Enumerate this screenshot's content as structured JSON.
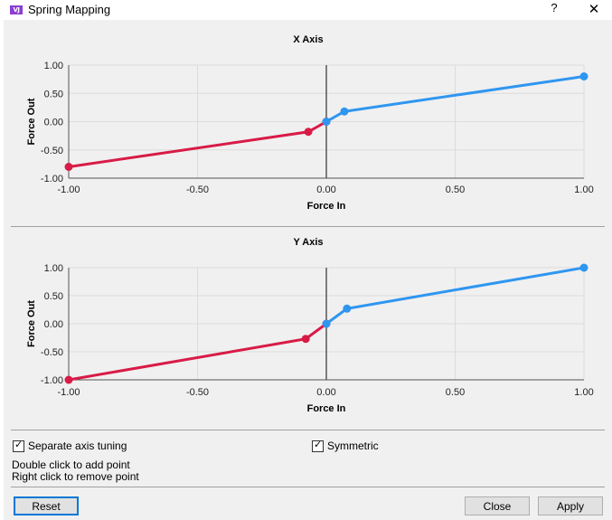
{
  "window": {
    "title": "Spring Mapping",
    "app_icon_text": "VJ",
    "help_label": "?",
    "close_label": "✕"
  },
  "chart_data": [
    {
      "type": "line",
      "title": "X Axis",
      "xlabel": "Force In",
      "ylabel": "Force Out",
      "xlim": [
        -1,
        1
      ],
      "ylim": [
        -1,
        1
      ],
      "xticks": [
        "-1.00",
        "-0.50",
        "0.00",
        "0.50",
        "1.00"
      ],
      "yticks": [
        "1.00",
        "0.50",
        "0.00",
        "-0.50",
        "-1.00"
      ],
      "grid": true,
      "series": [
        {
          "color": "#d81b46",
          "points": [
            [
              -1.0,
              -0.8
            ],
            [
              -0.07,
              -0.18
            ],
            [
              0.0,
              0.0
            ]
          ]
        },
        {
          "color": "#2f96f0",
          "points": [
            [
              0.0,
              0.0
            ],
            [
              0.07,
              0.18
            ],
            [
              1.0,
              0.8
            ]
          ]
        }
      ]
    },
    {
      "type": "line",
      "title": "Y Axis",
      "xlabel": "Force In",
      "ylabel": "Force Out",
      "xlim": [
        -1,
        1
      ],
      "ylim": [
        -1,
        1
      ],
      "xticks": [
        "-1.00",
        "-0.50",
        "0.00",
        "0.50",
        "1.00"
      ],
      "yticks": [
        "1.00",
        "0.50",
        "0.00",
        "-0.50",
        "-1.00"
      ],
      "grid": true,
      "series": [
        {
          "color": "#d81b46",
          "points": [
            [
              -1.0,
              -1.0
            ],
            [
              -0.08,
              -0.27
            ],
            [
              0.0,
              0.0
            ]
          ]
        },
        {
          "color": "#2f96f0",
          "points": [
            [
              0.0,
              0.0
            ],
            [
              0.08,
              0.27
            ],
            [
              1.0,
              1.0
            ]
          ]
        }
      ]
    }
  ],
  "options": {
    "separate_axis_tuning": {
      "label": "Separate axis tuning",
      "checked": true
    },
    "symmetric": {
      "label": "Symmetric",
      "checked": true
    }
  },
  "hints": {
    "line1": "Double click to add point",
    "line2": "Right click to remove point"
  },
  "buttons": {
    "reset": "Reset",
    "close": "Close",
    "apply": "Apply"
  }
}
